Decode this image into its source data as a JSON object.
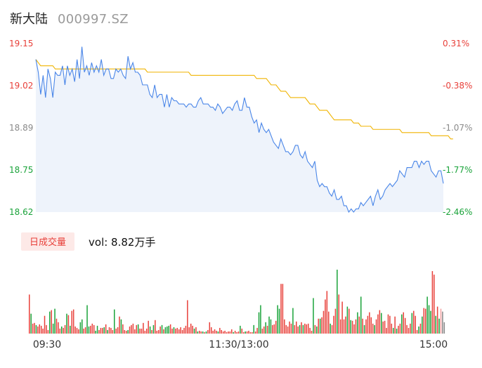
{
  "stock": {
    "name": "新大陆",
    "code": "000997.SZ"
  },
  "volume_panel": {
    "period_button": "日成交量",
    "vol_label": "vol: 8.82万手"
  },
  "colors": {
    "price_line": "#4a86e8",
    "avg_line": "#f0b400",
    "area_fill": "#eef3fb",
    "up": "#e8403a",
    "down": "#1aa33a",
    "neutral": "#888888"
  },
  "chart_data": [
    {
      "type": "line",
      "x_ticks": [
        "09:30",
        "11:30/13:00",
        "15:00"
      ],
      "y_ticks": [
        "19.15",
        "19.02",
        "18.89",
        "18.75",
        "18.62"
      ],
      "y_ticks_right": [
        "0.31%",
        "-0.38%",
        "-1.07%",
        "-1.77%",
        "-2.46%"
      ],
      "ylim": [
        18.62,
        19.15
      ],
      "series": [
        {
          "values": [
            19.1,
            19.06,
            18.99,
            19.05,
            18.98,
            19.07,
            19.04,
            18.98,
            19.06,
            19.05,
            19.05,
            19.08,
            19.02,
            19.08,
            19.05,
            19.07,
            19.03,
            19.1,
            19.04,
            19.14,
            19.06,
            19.08,
            19.05,
            19.09,
            19.06,
            19.08,
            19.06,
            19.1,
            19.05,
            19.07,
            19.07,
            19.04,
            19.04,
            19.07,
            19.06,
            19.07,
            19.05,
            19.04,
            19.11,
            19.07,
            19.09,
            19.06,
            19.06,
            19.05,
            19.02,
            19.02,
            19.02,
            18.99,
            18.98,
            19.02,
            18.98,
            18.99,
            18.99,
            18.95,
            18.99,
            18.95,
            18.98,
            18.97,
            18.97,
            18.96,
            18.96,
            18.96,
            18.95,
            18.96,
            18.96,
            18.95,
            18.95,
            18.97,
            18.98,
            18.96,
            18.96,
            18.96,
            18.95,
            18.95,
            18.94,
            18.96,
            18.95,
            18.93,
            18.94,
            18.95,
            18.95,
            18.94,
            18.96,
            18.97,
            18.94,
            18.94,
            18.98,
            18.95,
            18.95,
            18.92,
            18.9,
            18.91,
            18.87,
            18.9,
            18.88,
            18.87,
            18.88,
            18.86,
            18.84,
            18.83,
            18.82,
            18.85,
            18.83,
            18.81,
            18.81,
            18.8,
            18.81,
            18.83,
            18.83,
            18.8,
            18.79,
            18.81,
            18.78,
            18.77,
            18.76,
            18.78,
            18.72,
            18.7,
            18.71,
            18.7,
            18.7,
            18.68,
            18.67,
            18.69,
            18.66,
            18.66,
            18.67,
            18.64,
            18.64,
            18.62,
            18.63,
            18.62,
            18.63,
            18.63,
            18.65,
            18.64,
            18.65,
            18.66,
            18.67,
            18.64,
            18.67,
            18.69,
            18.66,
            18.67,
            18.69,
            18.7,
            18.71,
            18.7,
            18.71,
            18.72,
            18.75,
            18.74,
            18.73,
            18.76,
            18.76,
            18.76,
            18.78,
            18.78,
            18.76,
            18.78,
            18.77,
            18.78,
            18.78,
            18.75,
            18.74,
            18.73,
            18.75,
            18.75,
            18.71
          ]
        },
        {
          "values": [
            19.1,
            19.09,
            19.08,
            19.08,
            19.08,
            19.08,
            19.08,
            19.08,
            19.07,
            19.07,
            19.07,
            19.07,
            19.07,
            19.07,
            19.07,
            19.07,
            19.07,
            19.07,
            19.07,
            19.07,
            19.07,
            19.07,
            19.07,
            19.07,
            19.07,
            19.07,
            19.07,
            19.07,
            19.07,
            19.07,
            19.07,
            19.07,
            19.07,
            19.07,
            19.07,
            19.07,
            19.07,
            19.07,
            19.07,
            19.07,
            19.07,
            19.07,
            19.07,
            19.07,
            19.07,
            19.07,
            19.06,
            19.06,
            19.06,
            19.06,
            19.06,
            19.06,
            19.06,
            19.06,
            19.06,
            19.06,
            19.06,
            19.06,
            19.06,
            19.06,
            19.06,
            19.06,
            19.06,
            19.06,
            19.05,
            19.05,
            19.05,
            19.05,
            19.05,
            19.05,
            19.05,
            19.05,
            19.05,
            19.05,
            19.05,
            19.05,
            19.05,
            19.05,
            19.05,
            19.05,
            19.05,
            19.05,
            19.05,
            19.05,
            19.05,
            19.05,
            19.05,
            19.05,
            19.05,
            19.05,
            19.05,
            19.04,
            19.04,
            19.04,
            19.04,
            19.04,
            19.03,
            19.02,
            19.02,
            19.02,
            19.01,
            19.0,
            19.0,
            19.0,
            18.99,
            18.98,
            18.98,
            18.98,
            18.98,
            18.98,
            18.98,
            18.98,
            18.97,
            18.96,
            18.96,
            18.96,
            18.95,
            18.94,
            18.94,
            18.94,
            18.94,
            18.93,
            18.92,
            18.91,
            18.91,
            18.91,
            18.91,
            18.91,
            18.91,
            18.91,
            18.91,
            18.9,
            18.9,
            18.9,
            18.89,
            18.89,
            18.89,
            18.89,
            18.89,
            18.88,
            18.88,
            18.88,
            18.88,
            18.88,
            18.88,
            18.88,
            18.88,
            18.88,
            18.88,
            18.88,
            18.88,
            18.87,
            18.87,
            18.87,
            18.87,
            18.87,
            18.87,
            18.87,
            18.87,
            18.87,
            18.87,
            18.87,
            18.87,
            18.86,
            18.86,
            18.86,
            18.86,
            18.86,
            18.86,
            18.86,
            18.86,
            18.85,
            18.85
          ]
        }
      ]
    },
    {
      "type": "bar",
      "xlabel": "",
      "ylabel": "",
      "ylim": [
        0,
        90
      ],
      "values": [
        55,
        28,
        14,
        15,
        12,
        10,
        13,
        11,
        7,
        25,
        12,
        5,
        31,
        33,
        14,
        35,
        21,
        16,
        7,
        10,
        8,
        12,
        28,
        26,
        11,
        32,
        34,
        10,
        8,
        6,
        16,
        20,
        7,
        9,
        40,
        10,
        11,
        14,
        12,
        4,
        11,
        5,
        8,
        8,
        9,
        13,
        5,
        9,
        8,
        5,
        34,
        7,
        9,
        24,
        20,
        13,
        5,
        4,
        5,
        10,
        12,
        14,
        6,
        12,
        13,
        7,
        7,
        15,
        4,
        7,
        18,
        10,
        5,
        12,
        19,
        4,
        5,
        10,
        12,
        6,
        9,
        10,
        11,
        13,
        7,
        9,
        7,
        8,
        6,
        9,
        5,
        8,
        11,
        47,
        9,
        14,
        11,
        7,
        9,
        3,
        4,
        3,
        3,
        2,
        3,
        5,
        16,
        9,
        4,
        6,
        4,
        3,
        8,
        5,
        3,
        4,
        2,
        3,
        3,
        6,
        2,
        4,
        2,
        3,
        11,
        7,
        2,
        3,
        3,
        4,
        2,
        2,
        12,
        3,
        8,
        30,
        40,
        7,
        10,
        16,
        11,
        24,
        20,
        12,
        13,
        18,
        40,
        35,
        70,
        70,
        20,
        12,
        10,
        17,
        14,
        36,
        12,
        17,
        10,
        12,
        16,
        12,
        14,
        13,
        14,
        8,
        4,
        50,
        12,
        10,
        21,
        21,
        23,
        32,
        48,
        60,
        31,
        14,
        12,
        25,
        35,
        90,
        55,
        20,
        45,
        20,
        24,
        38,
        35,
        19,
        18,
        13,
        20,
        30,
        24,
        52,
        21,
        12,
        20,
        25,
        30,
        23,
        14,
        12,
        20,
        27,
        33,
        29,
        17,
        18,
        8,
        27,
        25,
        14,
        8,
        24,
        7,
        11,
        14,
        27,
        30,
        22,
        12,
        8,
        14,
        29,
        32,
        25,
        5,
        10,
        14,
        24,
        36,
        35,
        52,
        40,
        32,
        88,
        83,
        25,
        38,
        21,
        35,
        31,
        16
      ],
      "value_colors": [
        "r",
        "g",
        "r",
        "r",
        "g",
        "r",
        "r",
        "r",
        "r",
        "r",
        "r",
        "r",
        "g",
        "r",
        "g",
        "g",
        "r",
        "r",
        "r",
        "g",
        "r",
        "r",
        "g",
        "r",
        "g",
        "r",
        "r",
        "r",
        "r",
        "r",
        "g",
        "g",
        "r",
        "r",
        "g",
        "g",
        "r",
        "r",
        "r",
        "g",
        "g",
        "r",
        "r",
        "r",
        "g",
        "r",
        "g",
        "r",
        "r",
        "r",
        "g",
        "r",
        "r",
        "r",
        "g",
        "r",
        "r",
        "r",
        "g",
        "r",
        "r",
        "r",
        "r",
        "r",
        "g",
        "r",
        "r",
        "r",
        "r",
        "r",
        "r",
        "g",
        "r",
        "g",
        "r",
        "r",
        "r",
        "r",
        "g",
        "r",
        "g",
        "g",
        "g",
        "r",
        "r",
        "g",
        "r",
        "r",
        "r",
        "r",
        "r",
        "r",
        "r",
        "r",
        "r",
        "r",
        "r",
        "g",
        "r",
        "g",
        "r",
        "r",
        "g",
        "r",
        "g",
        "r",
        "r",
        "r",
        "r",
        "r",
        "r",
        "g",
        "r",
        "r",
        "r",
        "r",
        "r",
        "r",
        "r",
        "r",
        "g",
        "r",
        "r",
        "r",
        "g",
        "r",
        "r",
        "g",
        "r",
        "r",
        "r",
        "r",
        "g",
        "r",
        "r",
        "g",
        "g",
        "r",
        "r",
        "g",
        "r",
        "g",
        "g",
        "r",
        "r",
        "r",
        "g",
        "g",
        "r",
        "r",
        "r",
        "r",
        "r",
        "r",
        "r",
        "g",
        "r",
        "r",
        "r",
        "g",
        "r",
        "g",
        "r",
        "r",
        "r",
        "r",
        "r",
        "g",
        "r",
        "g",
        "r",
        "g",
        "r",
        "r",
        "r",
        "r",
        "r",
        "g",
        "r",
        "r",
        "r",
        "g",
        "r",
        "r",
        "r",
        "r",
        "r",
        "g",
        "r",
        "g",
        "r",
        "r",
        "r",
        "g",
        "r",
        "g",
        "r",
        "g",
        "r",
        "r",
        "r",
        "r",
        "r",
        "g",
        "r",
        "r",
        "r",
        "g",
        "r",
        "r",
        "r",
        "r",
        "r",
        "r",
        "g",
        "r",
        "g",
        "r",
        "r",
        "g",
        "r",
        "r",
        "r",
        "r",
        "r",
        "g",
        "r",
        "r",
        "r",
        "g",
        "r",
        "g",
        "r",
        "r",
        "g",
        "g",
        "g",
        "r",
        "r",
        "g",
        "r",
        "g",
        "n"
      ]
    }
  ]
}
